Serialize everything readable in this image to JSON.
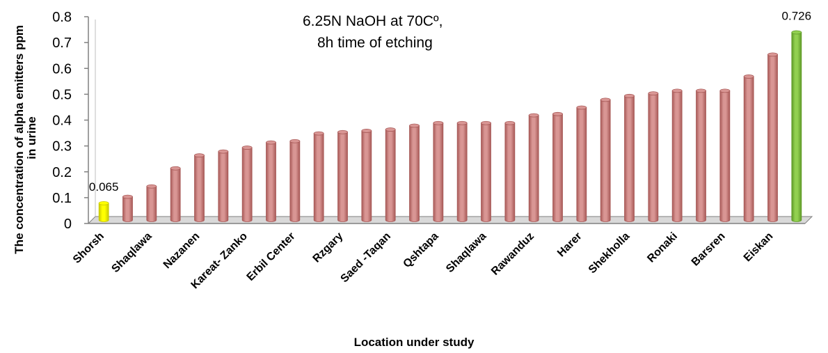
{
  "chart_data": {
    "type": "bar",
    "style": "3d-cylinder",
    "xlabel": "Location under study",
    "ylabel": "The concentration of  alpha emitters ppm in urine",
    "ylim": [
      0,
      0.8
    ],
    "yticks": [
      "0",
      "0.1",
      "0.2",
      "0.3",
      "0.4",
      "0.5",
      "0.6",
      "0.7",
      "0.8"
    ],
    "annotation": [
      "6.25N NaOH  at 70Cº,",
      "8h time of etching"
    ],
    "categories": [
      "Shorsh",
      "",
      "Shaqlawa",
      "",
      "Nazanen",
      "",
      "Kareat- Zanko",
      "",
      "Erbil Center",
      "",
      "Rzgary",
      "",
      "Saed -Taqan",
      "",
      "Qshtapa",
      "",
      "Shaqlawa",
      "",
      "Rawanduz",
      "",
      "Harer",
      "",
      "Shekholla",
      "",
      "Ronaki",
      "",
      "Barsren",
      "",
      "Eiskan",
      ""
    ],
    "values": [
      0.065,
      0.09,
      0.13,
      0.2,
      0.25,
      0.265,
      0.28,
      0.3,
      0.305,
      0.335,
      0.34,
      0.345,
      0.35,
      0.365,
      0.375,
      0.375,
      0.375,
      0.375,
      0.405,
      0.41,
      0.435,
      0.465,
      0.48,
      0.49,
      0.5,
      0.5,
      0.5,
      0.555,
      0.64,
      0.726
    ],
    "data_labels": [
      {
        "index": 0,
        "text": "0.065"
      },
      {
        "index": 29,
        "text": "0.726"
      }
    ],
    "colors": {
      "default_bar": "#d99694",
      "default_bar_dark": "#a85a58",
      "min_bar": "#ffff00",
      "min_bar_dark": "#c8c800",
      "max_bar": "#92d050",
      "max_bar_dark": "#5f9a28",
      "floor": "#d9d9d9",
      "axis": "#808080"
    },
    "highlight": {
      "min_index": 0,
      "max_index": 29
    },
    "grid": false,
    "legend": "none"
  }
}
